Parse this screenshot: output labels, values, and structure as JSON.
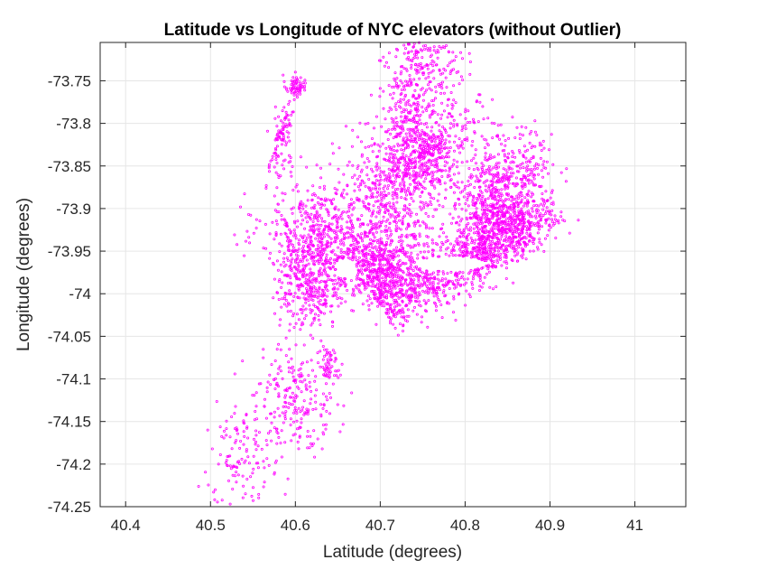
{
  "chart_data": {
    "type": "scatter",
    "title": "Latitude vs Longitude of NYC elevators (without Outlier)",
    "xlabel": "Latitude (degrees)",
    "ylabel": "Longitude (degrees)",
    "xlim": [
      40.37,
      41.06
    ],
    "ylim": [
      -74.25,
      -73.705
    ],
    "xticks": [
      40.4,
      40.5,
      40.6,
      40.7,
      40.8,
      40.9,
      41
    ],
    "xtick_labels": [
      "40.4",
      "40.5",
      "40.6",
      "40.7",
      "40.8",
      "40.9",
      "41"
    ],
    "yticks": [
      -73.75,
      -73.8,
      -73.85,
      -73.9,
      -73.95,
      -74,
      -74.05,
      -74.1,
      -74.15,
      -74.2,
      -74.25
    ],
    "ytick_labels": [
      "-73.75",
      "-73.8",
      "-73.85",
      "-73.9",
      "-73.95",
      "-74",
      "-74.05",
      "-74.1",
      "-74.15",
      "-74.2",
      "-74.25"
    ],
    "grid": true,
    "legend": false,
    "marker_color": "#ff00ff",
    "series": [
      {
        "regions": [
          {
            "lat": 40.6,
            "lon": -73.755,
            "sigma_lat": 0.006,
            "sigma_lon": 0.006,
            "count": 60
          },
          {
            "lat": 40.586,
            "lon": -73.82,
            "sigma_lat": 0.008,
            "sigma_lon": 0.03,
            "count": 50
          },
          {
            "lat": 40.63,
            "lon": -73.93,
            "sigma_lat": 0.035,
            "sigma_lon": 0.03,
            "count": 520
          },
          {
            "lat": 40.62,
            "lon": -73.99,
            "sigma_lat": 0.02,
            "sigma_lon": 0.025,
            "count": 320
          },
          {
            "lat": 40.71,
            "lon": -73.9,
            "sigma_lat": 0.03,
            "sigma_lon": 0.045,
            "count": 500
          },
          {
            "lat": 40.695,
            "lon": -73.97,
            "sigma_lat": 0.025,
            "sigma_lon": 0.02,
            "count": 420
          },
          {
            "lat": 40.73,
            "lon": -73.82,
            "sigma_lat": 0.015,
            "sigma_lon": 0.04,
            "count": 260
          },
          {
            "lat": 40.75,
            "lon": -73.73,
            "sigma_lat": 0.02,
            "sigma_lon": 0.03,
            "count": 220
          },
          {
            "lat": 40.78,
            "lon": -73.8,
            "sigma_lat": 0.025,
            "sigma_lon": 0.04,
            "count": 170
          },
          {
            "lat": 40.74,
            "lon": -73.85,
            "sigma_lat": 0.03,
            "sigma_lon": 0.025,
            "count": 180
          },
          {
            "lat": 40.76,
            "lon": -73.83,
            "sigma_lat": 0.01,
            "sigma_lon": 0.015,
            "count": 120
          },
          {
            "lat": 40.84,
            "lon": -73.88,
            "sigma_lat": 0.025,
            "sigma_lon": 0.025,
            "count": 300
          },
          {
            "lat": 40.86,
            "lon": -73.85,
            "sigma_lat": 0.025,
            "sigma_lon": 0.025,
            "count": 160
          },
          {
            "lat": 40.83,
            "lon": -73.91,
            "sigma_lat": 0.02,
            "sigma_lon": 0.015,
            "count": 180
          },
          {
            "lat": 40.6,
            "lon": -74.12,
            "sigma_lat": 0.025,
            "sigma_lon": 0.03,
            "count": 230
          },
          {
            "lat": 40.54,
            "lon": -74.19,
            "sigma_lat": 0.02,
            "sigma_lon": 0.03,
            "count": 120
          },
          {
            "lat": 40.64,
            "lon": -74.08,
            "sigma_lat": 0.007,
            "sigma_lon": 0.01,
            "count": 50
          }
        ],
        "line_regions": [
          {
            "lat0": 40.7,
            "lon0": -74.015,
            "lat1": 40.875,
            "lon1": -73.915,
            "width": 0.018,
            "count": 1000
          },
          {
            "lat0": 40.8,
            "lon0": -73.96,
            "lat1": 40.91,
            "lon1": -73.9,
            "width": 0.012,
            "count": 260
          },
          {
            "lat0": 40.57,
            "lon0": -73.86,
            "lat1": 40.6,
            "lon1": -73.76,
            "width": 0.003,
            "count": 60
          }
        ],
        "exclusions": [
          {
            "lat": 40.782,
            "lon": -73.965,
            "r_lat": 0.042,
            "r_lon": 0.009
          },
          {
            "lat": 40.66,
            "lon": -73.97,
            "r_lat": 0.012,
            "r_lon": 0.012
          }
        ]
      }
    ]
  }
}
